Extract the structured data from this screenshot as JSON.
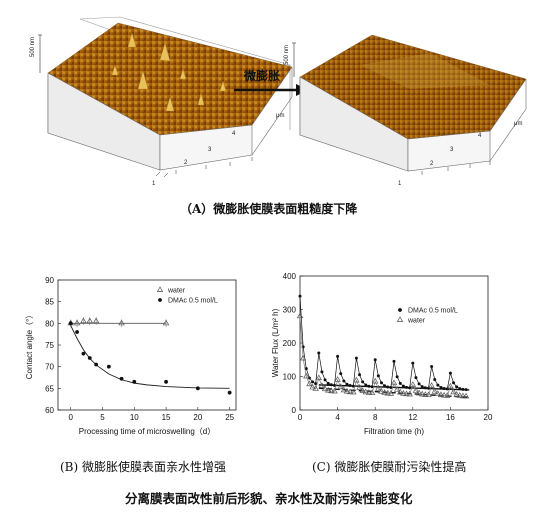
{
  "panel_a": {
    "left": {
      "z_label": "500 nm",
      "unit": "μm",
      "x_ticks": [
        "1",
        "2",
        "3",
        "4"
      ],
      "y_ticks": [
        "1",
        "2",
        "3",
        "4"
      ]
    },
    "right": {
      "z_label": "500 nm",
      "unit": "μm",
      "x_ticks": [
        "1",
        "2",
        "3",
        "4"
      ],
      "y_ticks": [
        "1",
        "2",
        "3",
        "4"
      ]
    },
    "arrow_label": "微膨胀",
    "caption": "（A）微膨胀使膜表面粗糙度下降"
  },
  "panel_b": {
    "caption": "(B) 微膨胀使膜表面亲水性增强"
  },
  "panel_c": {
    "caption": "(C) 微膨胀使膜耐污染性提高"
  },
  "figure_caption": "分离膜表面改性前后形貌、亲水性及耐污染性能变化",
  "chart_data": [
    {
      "type": "scatter",
      "id": "B",
      "xlabel": "Processing time of microswelling（d）",
      "ylabel": "Contact angle（°）",
      "xlim": [
        -2,
        26
      ],
      "ylim": [
        60,
        90
      ],
      "x_ticks": [
        0,
        5,
        10,
        15,
        20,
        25
      ],
      "y_ticks": [
        60,
        65,
        70,
        75,
        80,
        85,
        90
      ],
      "legend_position": "top-right",
      "series": [
        {
          "name": "water",
          "marker": "triangle-open",
          "x": [
            0,
            1,
            2,
            3,
            4,
            8,
            15
          ],
          "y": [
            80,
            80,
            80.5,
            80.5,
            80.5,
            80,
            80
          ],
          "fit_x": [
            0,
            15
          ],
          "fit_y": [
            80,
            80
          ]
        },
        {
          "name": "DMAc 0.5 mol/L",
          "marker": "circle-filled",
          "x": [
            0,
            1,
            2,
            3,
            4,
            6,
            8,
            10,
            15,
            20,
            25
          ],
          "y": [
            80,
            78,
            73,
            72,
            70.5,
            70,
            67.2,
            66.5,
            66.5,
            65,
            64
          ],
          "fit_x": [
            0,
            1,
            2,
            3,
            4,
            6,
            8,
            10,
            12,
            15,
            20,
            25
          ],
          "fit_y": [
            79.5,
            76.5,
            73.9,
            71.9,
            70.4,
            68.3,
            67.0,
            66.2,
            65.8,
            65.4,
            65.1,
            65.0
          ]
        }
      ]
    },
    {
      "type": "line",
      "id": "C",
      "xlabel": "Filtration time (h)",
      "ylabel": "Water Flux (L/m² h)",
      "xlim": [
        0,
        20
      ],
      "ylim": [
        0,
        400
      ],
      "x_ticks": [
        0,
        4,
        8,
        12,
        16,
        20
      ],
      "y_ticks": [
        0,
        100,
        200,
        300,
        400
      ],
      "legend_position": "top-right",
      "cycle_starts": [
        0,
        2,
        4,
        6,
        8,
        10,
        12,
        14,
        16
      ],
      "series": [
        {
          "name": "DMAc 0.5 mol/L",
          "marker": "circle-filled",
          "peaks": [
            340,
            170,
            160,
            155,
            150,
            145,
            140,
            130,
            110
          ],
          "troughs": [
            75,
            72,
            70,
            68,
            66,
            65,
            64,
            62,
            60
          ]
        },
        {
          "name": "water",
          "marker": "triangle-open",
          "peaks": [
            280,
            95,
            90,
            88,
            85,
            80,
            75,
            72,
            70
          ],
          "troughs": [
            60,
            55,
            52,
            50,
            48,
            46,
            44,
            42,
            40
          ]
        }
      ],
      "baselines": [
        {
          "x": [
            2,
            18
          ],
          "y": [
            75,
            60
          ],
          "style": "solid"
        },
        {
          "x": [
            2,
            18
          ],
          "y": [
            65,
            38
          ],
          "style": "dashed"
        }
      ]
    }
  ]
}
